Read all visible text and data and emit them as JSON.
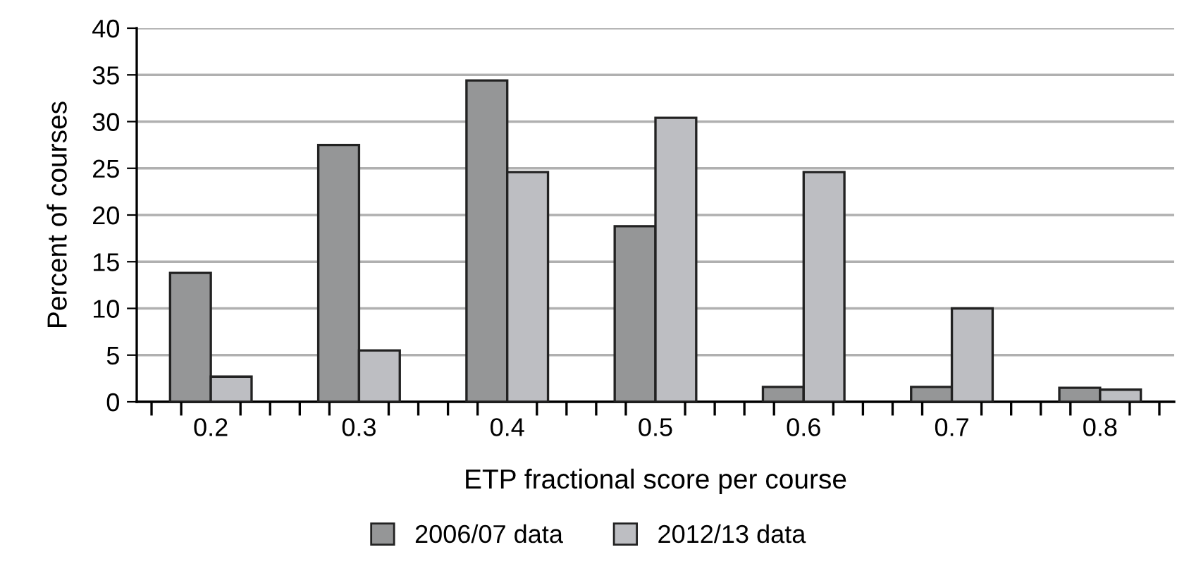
{
  "chart_data": {
    "type": "bar",
    "xlabel": "ETP fractional score per course",
    "ylabel": "Percent of courses",
    "categories": [
      "0.2",
      "0.3",
      "0.4",
      "0.5",
      "0.6",
      "0.7",
      "0.8"
    ],
    "series": [
      {
        "name": "2006/07 data",
        "color": "#959697",
        "values": [
          13.8,
          27.5,
          34.4,
          18.8,
          1.6,
          1.6,
          1.5
        ]
      },
      {
        "name": "2012/13 data",
        "color": "#bdbec2",
        "values": [
          2.7,
          5.5,
          24.6,
          30.4,
          24.6,
          10.0,
          1.3
        ]
      }
    ],
    "ylim": [
      0,
      40
    ],
    "yticks": [
      0,
      5,
      10,
      15,
      20,
      25,
      30,
      35,
      40
    ],
    "grid": "y",
    "legend": "bottom"
  }
}
